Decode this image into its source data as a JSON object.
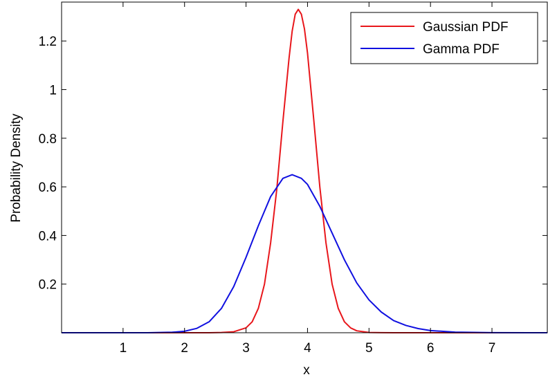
{
  "chart_data": {
    "type": "line",
    "title": "",
    "xlabel": "x",
    "ylabel": "Probability Density",
    "xlim": [
      0,
      7.9
    ],
    "ylim": [
      0,
      1.36
    ],
    "xticks": [
      1,
      2,
      3,
      4,
      5,
      6,
      7
    ],
    "yticks": [
      0.2,
      0.4,
      0.6,
      0.8,
      1,
      1.2
    ],
    "grid": false,
    "legend": "top-right",
    "series": [
      {
        "name": "Gaussian PDF",
        "color": "#e8161b",
        "x": [
          0,
          2.4,
          2.6,
          2.8,
          3.0,
          3.1,
          3.2,
          3.3,
          3.4,
          3.5,
          3.6,
          3.7,
          3.75,
          3.8,
          3.85,
          3.9,
          3.95,
          4.0,
          4.1,
          4.2,
          4.3,
          4.4,
          4.5,
          4.6,
          4.7,
          4.8,
          5.0,
          5.2,
          5.4,
          7.9
        ],
        "y": [
          0,
          0,
          0.001,
          0.004,
          0.02,
          0.045,
          0.1,
          0.2,
          0.37,
          0.59,
          0.87,
          1.13,
          1.24,
          1.31,
          1.33,
          1.31,
          1.25,
          1.15,
          0.88,
          0.6,
          0.37,
          0.2,
          0.1,
          0.045,
          0.02,
          0.008,
          0.001,
          0.0002,
          0,
          0
        ]
      },
      {
        "name": "Gamma PDF",
        "color": "#1010e0",
        "x": [
          0,
          1.4,
          1.8,
          2.0,
          2.2,
          2.4,
          2.6,
          2.8,
          3.0,
          3.2,
          3.4,
          3.6,
          3.75,
          3.9,
          4.0,
          4.2,
          4.4,
          4.6,
          4.8,
          5.0,
          5.2,
          5.4,
          5.6,
          5.8,
          6.0,
          6.4,
          7.0,
          7.9
        ],
        "y": [
          0,
          0,
          0.002,
          0.006,
          0.018,
          0.045,
          0.1,
          0.19,
          0.31,
          0.44,
          0.56,
          0.635,
          0.65,
          0.635,
          0.61,
          0.52,
          0.41,
          0.3,
          0.205,
          0.135,
          0.085,
          0.05,
          0.03,
          0.017,
          0.009,
          0.0025,
          0.0003,
          0
        ]
      }
    ]
  }
}
